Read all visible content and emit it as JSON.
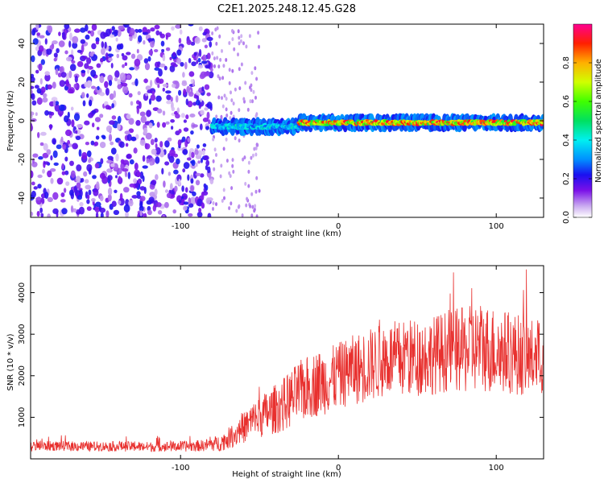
{
  "figure_title": "C2E1.2025.248.12.45.G28",
  "colors": {
    "snr_line": "#e8302e",
    "axis": "#000000"
  },
  "chart_data": [
    {
      "type": "heatmap",
      "name": "spectrogram",
      "xlabel": "Height of straight line (km)",
      "ylabel": "Frequency (Hz)",
      "xlim": [
        -195,
        130
      ],
      "ylim": [
        -50,
        50
      ],
      "xticks": [
        -100,
        0,
        100
      ],
      "xtick_labels": [
        "-100",
        "0",
        "100"
      ],
      "yticks": [
        -40,
        -20,
        0,
        20,
        40
      ],
      "ytick_labels": [
        "-40",
        "-20",
        "0",
        "20",
        "40"
      ],
      "colorbar_label": "Normalized spectral amplitude",
      "colorbar_range": [
        0,
        1
      ],
      "colorbar_ticks": [
        0,
        0.2,
        0.4,
        0.6,
        0.8
      ],
      "colorbar_tick_labels": [
        "0.0",
        "0.2",
        "0.4",
        "0.6",
        "0.8"
      ],
      "description_segments": [
        {
          "x_range": [
            -195,
            -80
          ],
          "kind": "noise",
          "amplitude": 0.15
        },
        {
          "x_range": [
            -80,
            -25
          ],
          "kind": "signal",
          "freq_hz": -3,
          "amplitude": 0.45
        },
        {
          "x_range": [
            -25,
            130
          ],
          "kind": "signal",
          "freq_hz": -1,
          "amplitude": 0.95
        }
      ]
    },
    {
      "type": "line",
      "name": "snr",
      "xlabel": "Height of straight line (km)",
      "ylabel": "SNR (10 * v/v)",
      "xlim": [
        -195,
        130
      ],
      "ylim": [
        0,
        4650
      ],
      "xticks": [
        -100,
        0,
        100
      ],
      "xtick_labels": [
        "-100",
        "0",
        "100"
      ],
      "yticks": [
        1000,
        2000,
        3000,
        4000
      ],
      "ytick_labels": [
        "1000",
        "2000",
        "3000",
        "4000"
      ],
      "series": [
        {
          "name": "SNR",
          "x": [
            -195,
            -180,
            -160,
            -140,
            -120,
            -100,
            -85,
            -75,
            -65,
            -55,
            -45,
            -35,
            -25,
            -15,
            -5,
            0,
            10,
            20,
            30,
            40,
            50,
            60,
            70,
            80,
            90,
            100,
            110,
            120,
            130
          ],
          "values": [
            300,
            310,
            300,
            300,
            290,
            300,
            320,
            380,
            600,
            900,
            1100,
            1300,
            1600,
            1800,
            1900,
            2000,
            2150,
            2250,
            2400,
            2400,
            2450,
            2500,
            2600,
            2600,
            2700,
            2600,
            2550,
            2450,
            2400
          ],
          "spread": [
            120,
            120,
            120,
            120,
            120,
            130,
            140,
            200,
            300,
            450,
            550,
            650,
            750,
            800,
            800,
            800,
            850,
            900,
            900,
            950,
            950,
            950,
            1000,
            1050,
            1100,
            1050,
            1000,
            950,
            900
          ]
        }
      ]
    }
  ]
}
